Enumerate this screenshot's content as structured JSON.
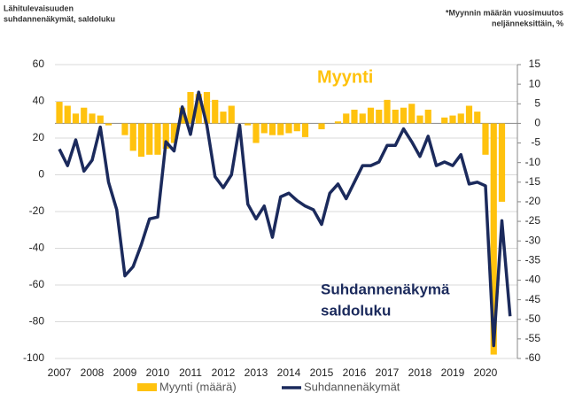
{
  "chart_data": {
    "type": "combo",
    "y_label": [
      "Lähitulevaisuuden",
      "suhdannenäkymät, saldoluku"
    ],
    "y2_label": [
      "*Myynnin määrän vuosimuutos",
      "neljänneksittäin, %"
    ],
    "annotations": [
      {
        "lines": [
          "Myynti"
        ],
        "color": "#FFC20E"
      },
      {
        "lines": [
          "Suhdannenäkymä",
          "saldoluku"
        ],
        "color": "#1B2A5C"
      }
    ],
    "categories": [
      "2007",
      null,
      null,
      null,
      "2008",
      null,
      null,
      null,
      "2009",
      null,
      null,
      null,
      "2010",
      null,
      null,
      null,
      "2011",
      null,
      null,
      null,
      "2012",
      null,
      null,
      null,
      "2013",
      null,
      null,
      null,
      "2014",
      null,
      null,
      null,
      "2015",
      null,
      null,
      null,
      "2016",
      null,
      null,
      null,
      "2017",
      null,
      null,
      null,
      "2018",
      null,
      null,
      null,
      "2019",
      null,
      null,
      null,
      "2020",
      null,
      null,
      null
    ],
    "series": [
      {
        "name": "Myynti (määrä)",
        "type": "bar",
        "axis": "y2",
        "color": "#FFC20E",
        "values": [
          5.5,
          4.5,
          2.5,
          4,
          2.5,
          2,
          -0.5,
          0,
          -3,
          -7,
          -8.5,
          -8,
          -8,
          -6.5,
          -5,
          4,
          8,
          7.5,
          8,
          6,
          3,
          4.5,
          0,
          -0.5,
          -5,
          -2.5,
          -3,
          -3,
          -2.5,
          -2,
          -3.5,
          0,
          -1.5,
          0,
          0.5,
          2.5,
          3.5,
          2.5,
          4,
          3.5,
          6,
          3.5,
          4,
          5,
          2,
          3.5,
          0,
          1.5,
          2,
          2.5,
          4.5,
          3,
          -8,
          -59,
          -20,
          null
        ]
      },
      {
        "name": "Suhdannenäkymät",
        "type": "line",
        "axis": "y",
        "color": "#1B2A5C",
        "values": [
          14,
          5,
          19,
          2,
          8,
          26,
          -4,
          -19,
          -55,
          -50,
          -38,
          -24,
          -23,
          18,
          13,
          37,
          22,
          45,
          27,
          -1,
          -7,
          0,
          27,
          -16,
          -24,
          -17,
          -34,
          -12,
          -10,
          -14,
          -17,
          -19,
          -27,
          -10,
          -5,
          -13,
          -4,
          5,
          5,
          7,
          16,
          16,
          25,
          18,
          10,
          21,
          5,
          7,
          5,
          11,
          -5,
          -4,
          -6,
          -93,
          -25,
          -77
        ]
      }
    ],
    "ylim": [
      -100,
      60
    ],
    "yticks": [
      60,
      40,
      20,
      0,
      -20,
      -40,
      -60,
      -80,
      -100
    ],
    "y2lim": [
      -60,
      15
    ],
    "y2ticks": [
      15,
      10,
      5,
      0,
      -5,
      -10,
      -15,
      -20,
      -25,
      -30,
      -35,
      -40,
      -45,
      -50,
      -55,
      -60
    ],
    "grid": true
  }
}
